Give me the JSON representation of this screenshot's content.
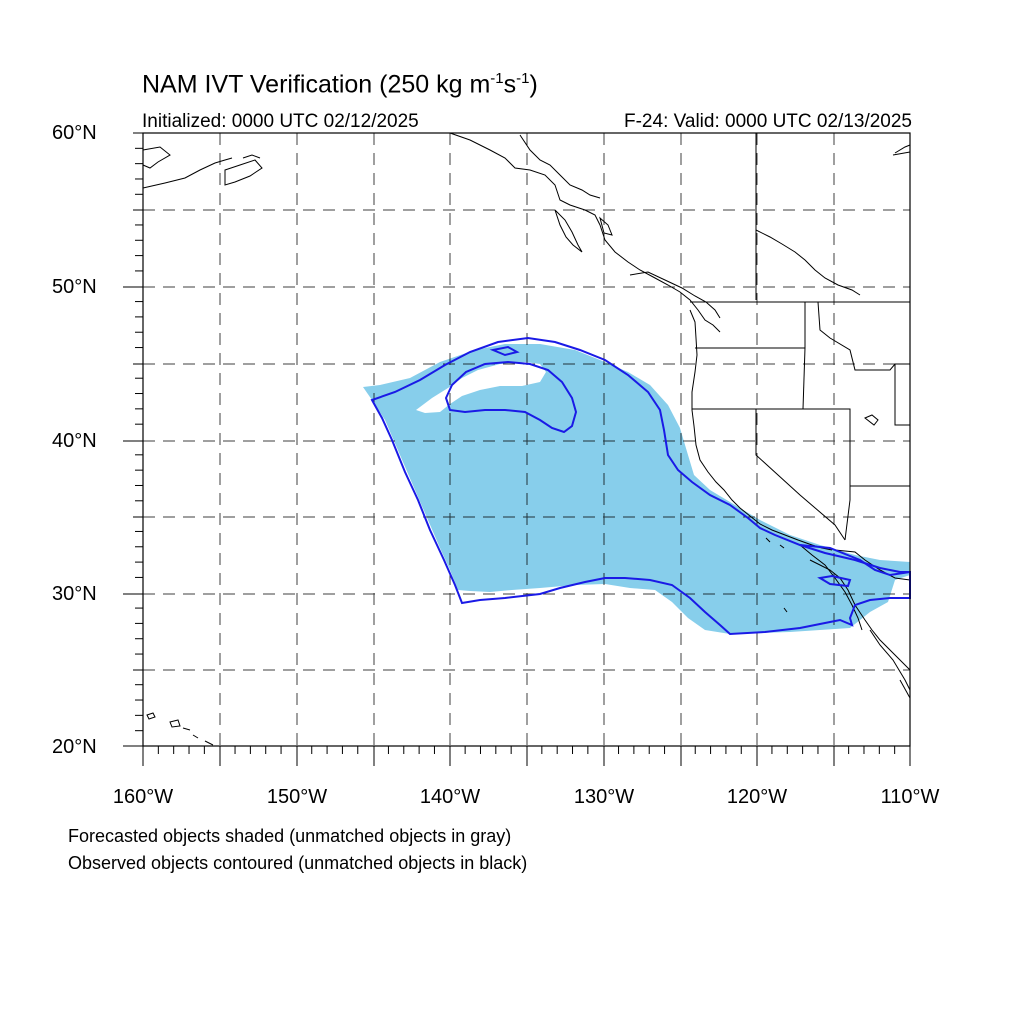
{
  "title": {
    "prefix": "NAM IVT Verification (250 kg m",
    "exp1": "-1",
    "mid": "s",
    "exp2": "-1",
    "suffix": ")"
  },
  "initialized": "Initialized: 0000 UTC 02/12/2025",
  "valid": "F-24: Valid: 0000 UTC 02/13/2025",
  "lat_labels": [
    "60°N",
    "50°N",
    "40°N",
    "30°N",
    "20°N"
  ],
  "lon_labels": [
    "160°W",
    "150°W",
    "140°W",
    "130°W",
    "120°W",
    "110°W"
  ],
  "notes": [
    "Forecasted objects shaded (unmatched objects in gray)",
    "Observed objects contoured (unmatched objects in black)"
  ],
  "colors": {
    "forecast_fill": "#87ceeb",
    "observed_contour": "#1a1ae6",
    "coastline": "#000000",
    "grid": "#000000"
  },
  "map_extent": {
    "lon": [
      -160,
      -110
    ],
    "lat": [
      20,
      60
    ],
    "grid_step": 5,
    "grid_style": "dashed"
  }
}
